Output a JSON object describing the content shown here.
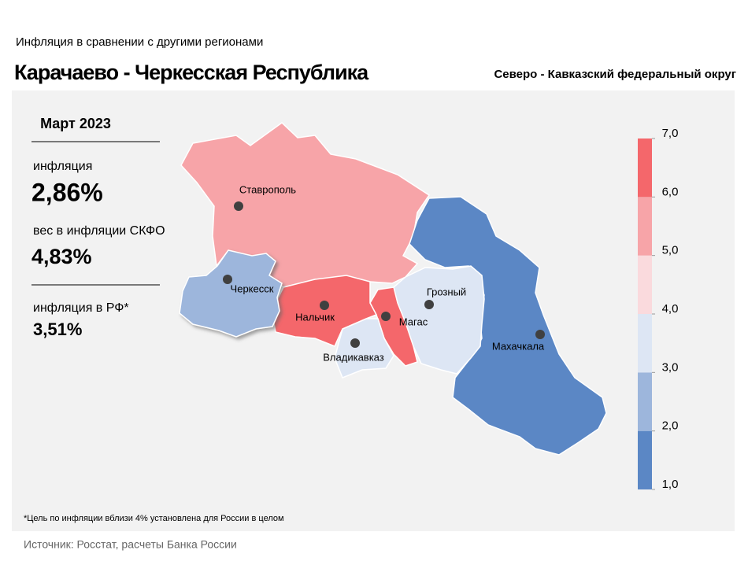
{
  "header": {
    "subtitle": "Инфляция  в сравнении  с другими  регионами",
    "title": "Карачаево - Черкесская Республика",
    "district": "Северо - Кавказский федеральный округ"
  },
  "panel": {
    "period": "Март 2023",
    "stats": [
      {
        "label": "инфляция",
        "value": "2,86%"
      },
      {
        "label": "вес в инфляции  СКФО",
        "value": "4,83%"
      },
      {
        "label": "инфляция  в РФ*",
        "value": "3,51%"
      }
    ]
  },
  "map": {
    "cities": [
      "Ставрополь",
      "Черкесск",
      "Нальчик",
      "Магас",
      "Грозный",
      "Владикавказ",
      "Махачкала"
    ]
  },
  "legend": {
    "colors": [
      "#5b87c5",
      "#9db6dc",
      "#dde6f4",
      "#fadadd",
      "#f7a4a8",
      "#f4676b"
    ],
    "ticks": [
      {
        "value": 1,
        "label": "1,0"
      },
      {
        "value": 2,
        "label": "2,0"
      },
      {
        "value": 3,
        "label": "3,0"
      },
      {
        "value": 4,
        "label": "4,0"
      },
      {
        "value": 5,
        "label": "5,0"
      },
      {
        "value": 6,
        "label": "6,0"
      },
      {
        "value": 7,
        "label": "7,0"
      }
    ]
  },
  "footnote": "*Цель по инфляции вблизи 4% установлена для России в целом",
  "source": "Источник: Росстат, расчеты Банка России"
}
